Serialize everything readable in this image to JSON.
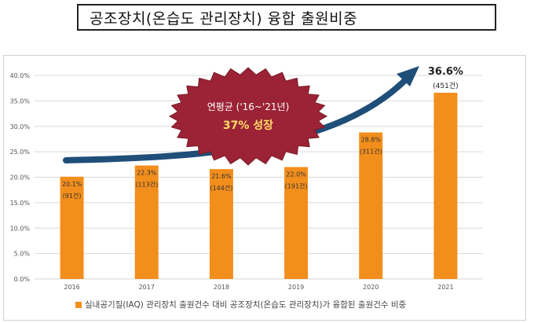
{
  "header": {
    "title": "공조장치(온습도 관리장치) 융합 출원비중"
  },
  "badge": {
    "line1": "연평균 ('16~'21년)",
    "line2": "37% 성장"
  },
  "highlight": {
    "value_label": "36.6%",
    "count_label": "(451건)"
  },
  "legend": {
    "label": "실내공기질(IAQ) 관리장치 출원건수 대비 공조장치(온습도 관리장치)가 융합된 출원건수 비중"
  },
  "colors": {
    "bar": "#f28e1c",
    "arrow": "#1f4e79",
    "badge": "#9b2335",
    "axis_text": "#555555",
    "grid": "#d9d9d9"
  },
  "chart_data": {
    "type": "bar",
    "categories": [
      "2016",
      "2017",
      "2018",
      "2019",
      "2020",
      "2021"
    ],
    "values": [
      20.1,
      22.3,
      21.6,
      22.0,
      28.8,
      36.6
    ],
    "value_labels": [
      "20.1%",
      "22.3%",
      "21.6%",
      "22.0%",
      "28.8%",
      "36.6%"
    ],
    "count_labels": [
      "(91건)",
      "(113건)",
      "(144건)",
      "(191건)",
      "(311건)",
      "(451건)"
    ],
    "yticks": [
      "0.0%",
      "5.0%",
      "10.0%",
      "15.0%",
      "20.0%",
      "25.0%",
      "30.0%",
      "35.0%",
      "40.0%"
    ],
    "ylim": [
      0,
      40
    ],
    "grid": true,
    "legend_position": "bottom-left"
  }
}
